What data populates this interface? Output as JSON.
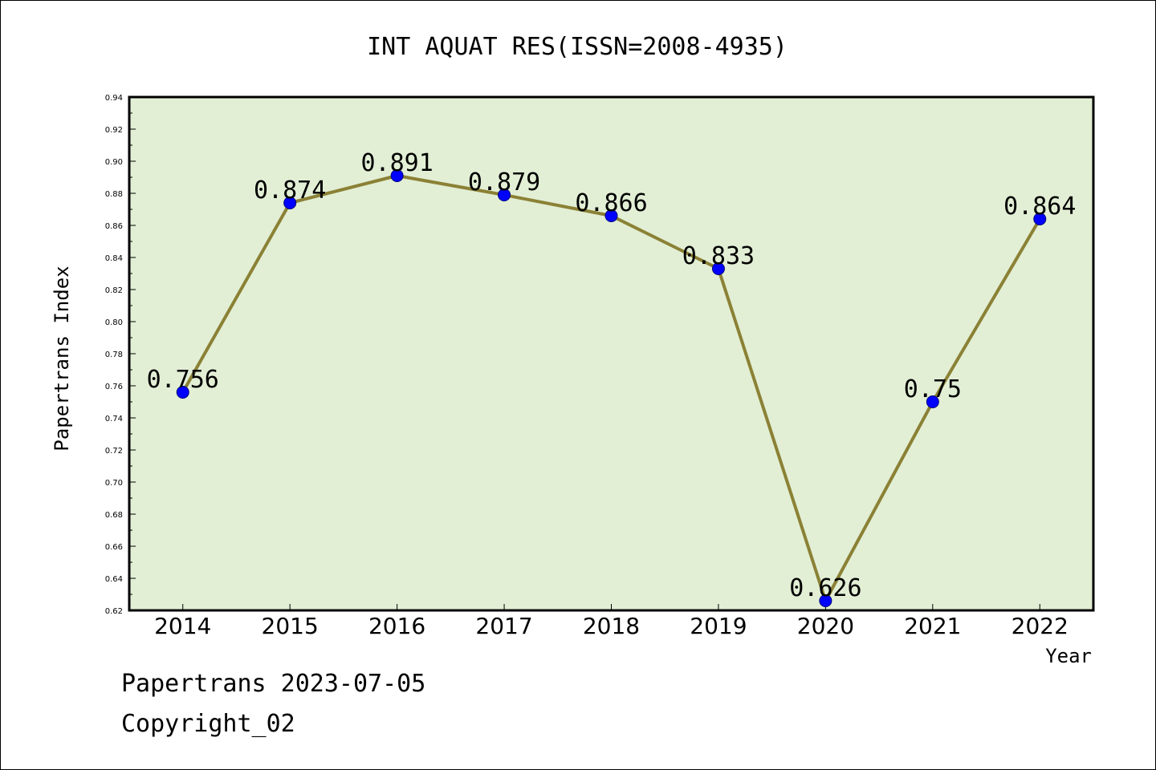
{
  "chart_data": {
    "type": "line",
    "title": "INT AQUAT RES(ISSN=2008-4935)",
    "xlabel": "Year",
    "ylabel": "Papertrans Index",
    "categories": [
      "2014",
      "2015",
      "2016",
      "2017",
      "2018",
      "2019",
      "2020",
      "2021",
      "2022"
    ],
    "series": [
      {
        "values": [
          0.756,
          0.874,
          0.891,
          0.879,
          0.866,
          0.833,
          0.626,
          0.75,
          0.864
        ],
        "labels": [
          "0.756",
          "0.874",
          "0.891",
          "0.879",
          "0.866",
          "0.833",
          "0.626",
          "0.75",
          "0.864"
        ]
      }
    ],
    "ylim": [
      0.62,
      0.94
    ],
    "yticks": [
      "0.62",
      "0.64",
      "0.66",
      "0.68",
      "0.70",
      "0.72",
      "0.74",
      "0.76",
      "0.78",
      "0.80",
      "0.82",
      "0.84",
      "0.86",
      "0.88",
      "0.90",
      "0.92",
      "0.94"
    ],
    "grid": false,
    "colors": {
      "plot_background": "#e2efd5",
      "line": "#8b8135",
      "marker": "#0000ff"
    }
  },
  "footer": {
    "line1": "Papertrans 2023-07-05",
    "line2": "Copyright_02"
  }
}
